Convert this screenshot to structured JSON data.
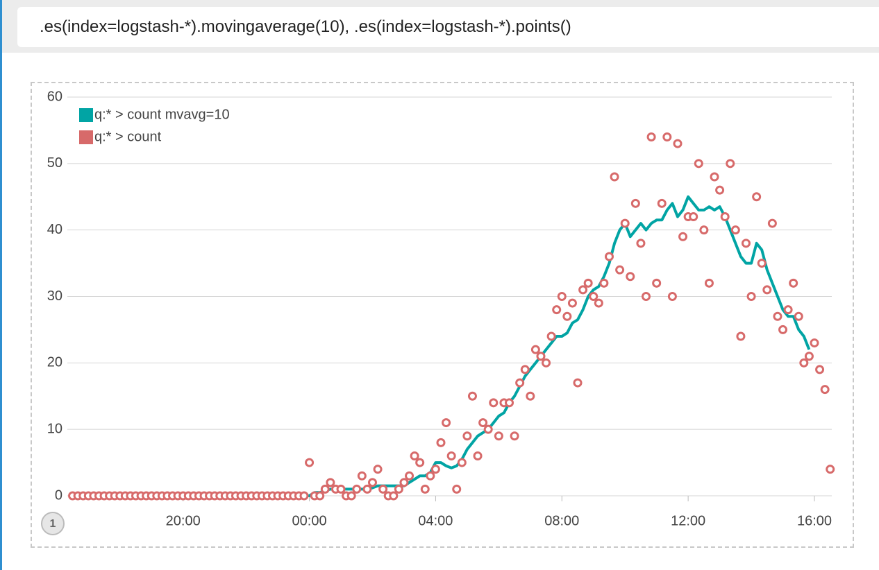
{
  "query": ".es(index=logstash-*).movingaverage(10), .es(index=logstash-*).points()",
  "page_number": "1",
  "chart_data": {
    "type": "line",
    "x": [
      -450,
      -440,
      -430,
      -420,
      -410,
      -400,
      -390,
      -380,
      -370,
      -360,
      -350,
      -340,
      -330,
      -320,
      -310,
      -300,
      -290,
      -280,
      -270,
      -260,
      -250,
      -240,
      -230,
      -220,
      -210,
      -200,
      -190,
      -180,
      -170,
      -160,
      -150,
      -140,
      -130,
      -120,
      -110,
      -100,
      -90,
      -80,
      -70,
      -60,
      -50,
      -40,
      -30,
      -20,
      -10,
      0,
      10,
      20,
      30,
      40,
      50,
      60,
      70,
      80,
      90,
      100,
      110,
      120,
      130,
      140,
      150,
      160,
      170,
      180,
      190,
      200,
      210,
      220,
      230,
      240,
      250,
      260,
      270,
      280,
      290,
      300,
      310,
      320,
      330,
      340,
      350,
      360,
      370,
      380,
      390,
      400,
      410,
      420,
      430,
      440,
      450,
      460,
      470,
      480,
      490,
      500,
      510,
      520,
      530,
      540,
      550,
      560,
      570,
      580,
      590,
      600,
      610,
      620,
      630,
      640,
      650,
      660,
      670,
      680,
      690,
      700,
      710,
      720,
      730,
      740,
      750,
      760,
      770,
      780,
      790,
      800,
      810,
      820,
      830,
      840,
      850,
      860,
      870,
      880,
      890,
      900,
      910,
      920,
      930,
      940,
      950,
      960,
      970,
      980,
      990
    ],
    "series": [
      {
        "name": "q:* > count mvavg=10",
        "color": "#01a4a4",
        "style": "line",
        "values": [
          0,
          0,
          0,
          0,
          0,
          0,
          0,
          0,
          0,
          0,
          0,
          0,
          0,
          0,
          0,
          0,
          0,
          0,
          0,
          0,
          0,
          0,
          0,
          0,
          0,
          0,
          0,
          0,
          0,
          0,
          0,
          0,
          0,
          0,
          0,
          0,
          0,
          0,
          0,
          0,
          0,
          0,
          0,
          0,
          0,
          0,
          0.5,
          0.5,
          0.8,
          1,
          1,
          1,
          1,
          1,
          1,
          1,
          1,
          1.2,
          1.5,
          1.5,
          1.5,
          1.5,
          1.5,
          1.5,
          2,
          2.5,
          3,
          3,
          3.5,
          5,
          5,
          4.5,
          4.2,
          4.5,
          5.5,
          7,
          8,
          9,
          9.5,
          10,
          11,
          12,
          12.5,
          14,
          15,
          16.5,
          18,
          19,
          20,
          21,
          22,
          23,
          24,
          24,
          24.5,
          26,
          26.5,
          28,
          30,
          31,
          31.5,
          33,
          35,
          38,
          40,
          41,
          39,
          40,
          41,
          40,
          41,
          41.5,
          41.5,
          43,
          44,
          42,
          43,
          45,
          44,
          43,
          43,
          43.5,
          43,
          43.5,
          42,
          40,
          38,
          36,
          35,
          35,
          38,
          37,
          34,
          32,
          30,
          28,
          27,
          27,
          25,
          24,
          22,
          null,
          null,
          null,
          null
        ]
      },
      {
        "name": "q:* > count",
        "color": "#d76a6a",
        "style": "points",
        "values": [
          0,
          0,
          0,
          0,
          0,
          0,
          0,
          0,
          0,
          0,
          0,
          0,
          0,
          0,
          0,
          0,
          0,
          0,
          0,
          0,
          0,
          0,
          0,
          0,
          0,
          0,
          0,
          0,
          0,
          0,
          0,
          0,
          0,
          0,
          0,
          0,
          0,
          0,
          0,
          0,
          0,
          0,
          0,
          0,
          0,
          5,
          0,
          0,
          1,
          2,
          1,
          1,
          0,
          0,
          1,
          3,
          1,
          2,
          4,
          1,
          0,
          0,
          1,
          2,
          3,
          6,
          5,
          1,
          3,
          4,
          8,
          11,
          6,
          1,
          5,
          9,
          15,
          6,
          11,
          10,
          14,
          9,
          14,
          14,
          9,
          17,
          19,
          15,
          22,
          21,
          20,
          24,
          28,
          30,
          27,
          29,
          17,
          31,
          32,
          30,
          29,
          32,
          36,
          48,
          34,
          41,
          33,
          44,
          38,
          30,
          54,
          32,
          44,
          54,
          30,
          53,
          39,
          42,
          42,
          50,
          40,
          32,
          48,
          46,
          42,
          50,
          40,
          24,
          38,
          30,
          45,
          35,
          31,
          41,
          27,
          25,
          28,
          32,
          27,
          20,
          21,
          23,
          19,
          16,
          4
        ]
      }
    ],
    "xlim": [
      -460,
      993
    ],
    "xticks": [
      {
        "value": -240,
        "label": "20:00"
      },
      {
        "value": 0,
        "label": "00:00"
      },
      {
        "value": 240,
        "label": "04:00"
      },
      {
        "value": 480,
        "label": "08:00"
      },
      {
        "value": 720,
        "label": "12:00"
      },
      {
        "value": 960,
        "label": "16:00"
      }
    ],
    "ylim": [
      0,
      60
    ],
    "yticks": [
      0,
      10,
      20,
      30,
      40,
      50,
      60
    ],
    "grid": true,
    "legend": "top-left"
  }
}
